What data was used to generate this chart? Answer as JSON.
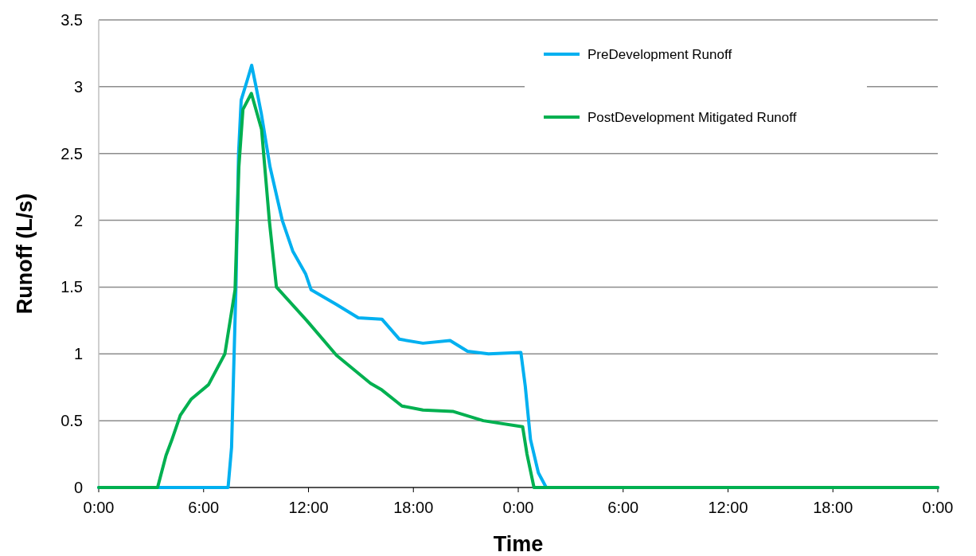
{
  "chart_data": {
    "type": "line",
    "xlabel": "Time",
    "ylabel": "Runoff (L/s)",
    "xlim": [
      "2000-01-01T00:00",
      "2000-01-03T00:00"
    ],
    "xticks": [
      {
        "value": "2000-01-01T00:00",
        "label": "0:00"
      },
      {
        "value": "2000-01-01T06:00",
        "label": "6:00"
      },
      {
        "value": "2000-01-01T12:00",
        "label": "12:00"
      },
      {
        "value": "2000-01-01T18:00",
        "label": "18:00"
      },
      {
        "value": "2000-01-02T00:00",
        "label": "0:00"
      },
      {
        "value": "2000-01-02T06:00",
        "label": "6:00"
      },
      {
        "value": "2000-01-02T12:00",
        "label": "12:00"
      },
      {
        "value": "2000-01-02T18:00",
        "label": "18:00"
      },
      {
        "value": "2000-01-03T00:00",
        "label": "0:00"
      }
    ],
    "ylim": [
      0,
      3.5
    ],
    "yticks": [
      0,
      0.5,
      1,
      1.5,
      2,
      2.5,
      3,
      3.5
    ],
    "grid": "y",
    "legend": "top right",
    "marker": "none",
    "line_style": "solid",
    "series": [
      {
        "name": "PreDevelopment Runoff",
        "color": "#00b0f0",
        "x": [
          "2000-01-01T00:00",
          "2000-01-01T07:24",
          "2000-01-01T07:36",
          "2000-01-01T07:51",
          "2000-01-01T08:00",
          "2000-01-01T08:09",
          "2000-01-01T08:30",
          "2000-01-01T08:45",
          "2000-01-01T09:00",
          "2000-01-01T09:18",
          "2000-01-01T09:48",
          "2000-01-01T10:30",
          "2000-01-01T11:06",
          "2000-01-01T11:50",
          "2000-01-01T12:09",
          "2000-01-01T13:36",
          "2000-01-01T14:51",
          "2000-01-01T16:12",
          "2000-01-01T17:12",
          "2000-01-01T18:33",
          "2000-01-01T20:06",
          "2000-01-01T21:06",
          "2000-01-01T22:18",
          "2000-01-02T00:09",
          "2000-01-02T00:24",
          "2000-01-02T00:42",
          "2000-01-02T01:09",
          "2000-01-02T01:36",
          "2000-01-03T00:00"
        ],
        "values": [
          0,
          0,
          0.3,
          1.5,
          2.5,
          2.9,
          3.05,
          3.16,
          3.0,
          2.8,
          2.4,
          2.0,
          1.77,
          1.6,
          1.48,
          1.37,
          1.27,
          1.26,
          1.11,
          1.08,
          1.1,
          1.02,
          1.0,
          1.01,
          0.76,
          0.36,
          0.11,
          0,
          0
        ]
      },
      {
        "name": "PostDevelopment Mitigated Runoff",
        "color": "#00b050",
        "x": [
          "2000-01-01T00:00",
          "2000-01-01T03:22",
          "2000-01-01T03:51",
          "2000-01-01T04:10",
          "2000-01-01T04:40",
          "2000-01-01T05:17",
          "2000-01-01T06:17",
          "2000-01-01T07:13",
          "2000-01-01T07:48",
          "2000-01-01T08:01",
          "2000-01-01T08:15",
          "2000-01-01T08:44",
          "2000-01-01T09:19",
          "2000-01-01T09:46",
          "2000-01-01T10:10",
          "2000-01-01T11:54",
          "2000-01-01T13:36",
          "2000-01-01T15:33",
          "2000-01-01T16:12",
          "2000-01-01T17:21",
          "2000-01-01T18:33",
          "2000-01-01T20:15",
          "2000-01-01T22:00",
          "2000-01-02T00:15",
          "2000-01-02T00:30",
          "2000-01-02T00:54",
          "2000-01-03T00:00"
        ],
        "values": [
          0,
          0,
          0.24,
          0.35,
          0.54,
          0.66,
          0.77,
          1.0,
          1.48,
          2.4,
          2.83,
          2.95,
          2.68,
          1.99,
          1.5,
          1.25,
          0.99,
          0.78,
          0.73,
          0.61,
          0.58,
          0.57,
          0.5,
          0.455,
          0.25,
          0,
          0
        ]
      }
    ]
  }
}
